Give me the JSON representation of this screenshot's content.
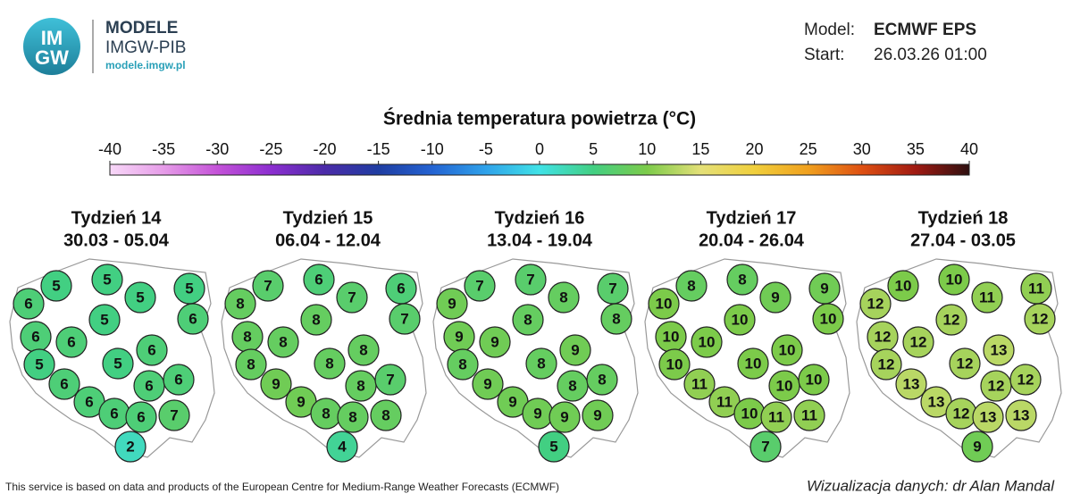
{
  "header": {
    "logo": [
      "IM",
      "GW"
    ],
    "brand": "MODELE",
    "org": "IMGW-PIB",
    "url": "modele.imgw.pl",
    "model_label": "Model:",
    "model": "ECMWF EPS",
    "start_label": "Start:",
    "start": "26.03.26 01:00"
  },
  "chart_data": {
    "type": "map",
    "title": "Średnia temperatura powietrza (°C)",
    "colorbar": {
      "ticks": [
        -40,
        -35,
        -30,
        -25,
        -20,
        -15,
        -10,
        -5,
        0,
        5,
        10,
        15,
        20,
        25,
        30,
        35,
        40
      ],
      "colors": [
        "#f8d8f8",
        "#e69ce8",
        "#c452d8",
        "#8c2ed0",
        "#4b2ba8",
        "#1f3da2",
        "#2463d2",
        "#2fa2ea",
        "#40e2e6",
        "#42cf82",
        "#7ccb4a",
        "#e4e078",
        "#f0cf3c",
        "#f0a01e",
        "#de5012",
        "#a01a12",
        "#2e1010"
      ]
    },
    "maps": [
      {
        "title": "Tydzień 14",
        "dates": "30.03 - 05.04",
        "values": [
          6,
          5,
          5,
          5,
          5,
          6,
          5,
          6,
          6,
          6,
          5,
          5,
          6,
          6,
          6,
          6,
          6,
          6,
          7,
          2
        ]
      },
      {
        "title": "Tydzień 15",
        "dates": "06.04 - 12.04",
        "values": [
          8,
          7,
          6,
          7,
          6,
          7,
          8,
          8,
          8,
          8,
          8,
          8,
          9,
          8,
          7,
          9,
          8,
          8,
          8,
          4
        ]
      },
      {
        "title": "Tydzień 16",
        "dates": "13.04 - 19.04",
        "values": [
          9,
          7,
          7,
          8,
          7,
          8,
          8,
          9,
          9,
          9,
          8,
          8,
          9,
          8,
          8,
          9,
          9,
          9,
          9,
          5
        ]
      },
      {
        "title": "Tydzień 17",
        "dates": "20.04 - 26.04",
        "values": [
          10,
          8,
          8,
          9,
          9,
          10,
          10,
          10,
          10,
          10,
          10,
          10,
          11,
          10,
          10,
          11,
          10,
          11,
          11,
          7
        ]
      },
      {
        "title": "Tydzień 18",
        "dates": "27.04 - 03.05",
        "values": [
          12,
          10,
          10,
          11,
          11,
          12,
          12,
          12,
          12,
          13,
          12,
          12,
          13,
          12,
          12,
          13,
          12,
          13,
          13,
          9
        ]
      }
    ]
  },
  "footer": {
    "source": "This service is based on data and products of the European Centre for Medium-Range Weather Forecasts (ECMWF)",
    "credit": "Wizualizacja danych: dr Alan Mandal"
  }
}
